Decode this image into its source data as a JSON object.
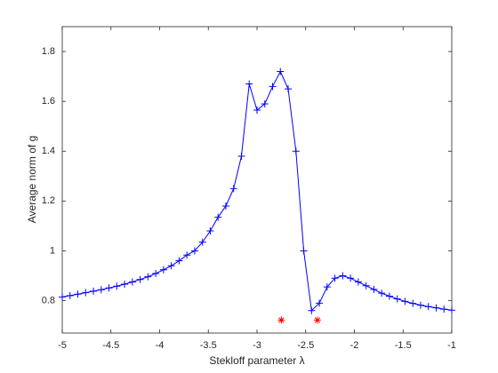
{
  "chart_data": {
    "type": "line",
    "xlabel": "Stekloff parameter λ",
    "ylabel": "Average norm of g",
    "xlim": [
      -5,
      -1
    ],
    "ylim": [
      0.67,
      1.9
    ],
    "xticks": [
      -5,
      -4.5,
      -4,
      -3.5,
      -3,
      -2.5,
      -2,
      -1.5,
      -1
    ],
    "yticks": [
      0.8,
      1,
      1.2,
      1.4,
      1.6,
      1.8
    ],
    "series": [
      {
        "color": "#0000ff",
        "marker": "+",
        "x": [
          -5,
          -4.92,
          -4.84,
          -4.76,
          -4.68,
          -4.6,
          -4.52,
          -4.44,
          -4.36,
          -4.28,
          -4.2,
          -4.12,
          -4.04,
          -3.96,
          -3.88,
          -3.8,
          -3.72,
          -3.64,
          -3.56,
          -3.48,
          -3.4,
          -3.32,
          -3.24,
          -3.16,
          -3.08,
          -3,
          -2.92,
          -2.84,
          -2.76,
          -2.68,
          -2.6,
          -2.52,
          -2.44,
          -2.36,
          -2.28,
          -2.2,
          -2.12,
          -2.04,
          -1.96,
          -1.88,
          -1.8,
          -1.72,
          -1.64,
          -1.56,
          -1.48,
          -1.4,
          -1.32,
          -1.24,
          -1.16,
          -1.08,
          -1
        ],
        "values": [
          0.815,
          0.82,
          0.826,
          0.832,
          0.838,
          0.844,
          0.851,
          0.858,
          0.866,
          0.875,
          0.885,
          0.896,
          0.909,
          0.924,
          0.94,
          0.96,
          0.983,
          1.0,
          1.035,
          1.08,
          1.135,
          1.18,
          1.25,
          1.38,
          1.67,
          1.565,
          1.59,
          1.66,
          1.72,
          1.65,
          1.4,
          1.0,
          0.76,
          0.79,
          0.855,
          0.89,
          0.9,
          0.89,
          0.875,
          0.86,
          0.845,
          0.83,
          0.818,
          0.807,
          0.797,
          0.789,
          0.782,
          0.776,
          0.771,
          0.766,
          0.762
        ]
      },
      {
        "color": "#ff0000",
        "marker": "*",
        "x": [
          -2.75,
          -2.38
        ],
        "values": [
          0.722,
          0.722
        ]
      }
    ]
  }
}
